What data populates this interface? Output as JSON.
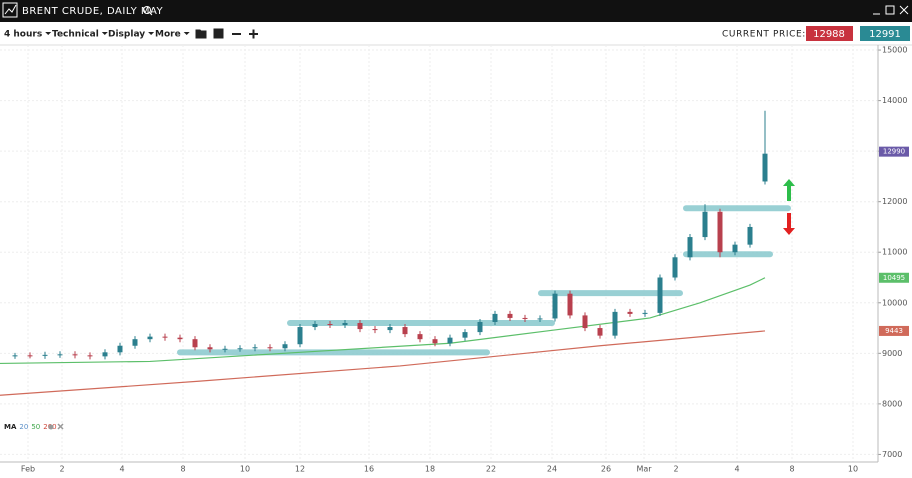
{
  "header": {
    "title": "BRENT CRUDE, DAILY MAY"
  },
  "toolbar": {
    "items": [
      "4 hours",
      "Technical",
      "Display",
      "More"
    ],
    "price_label": "CURRENT PRICE:",
    "bid": "12988",
    "ask": "12991"
  },
  "chart_data": {
    "type": "candlestick",
    "xlim": [
      0,
      175.6
    ],
    "ylim": [
      6850,
      15100
    ],
    "xticks": [
      {
        "value": 5.6,
        "label": "Feb"
      },
      {
        "value": 12.4,
        "label": "2"
      },
      {
        "value": 24.4,
        "label": "4"
      },
      {
        "value": 36.6,
        "label": "8"
      },
      {
        "value": 49,
        "label": "10"
      },
      {
        "value": 60,
        "label": "12"
      },
      {
        "value": 73.8,
        "label": "16"
      },
      {
        "value": 86,
        "label": "18"
      },
      {
        "value": 98.2,
        "label": "22"
      },
      {
        "value": 110.4,
        "label": "24"
      },
      {
        "value": 121.2,
        "label": "26"
      },
      {
        "value": 128.8,
        "label": "Mar"
      },
      {
        "value": 135.2,
        "label": "2"
      },
      {
        "value": 147.4,
        "label": "4"
      },
      {
        "value": 158.4,
        "label": "8"
      },
      {
        "value": 170.6,
        "label": "10"
      }
    ],
    "yticks": [
      7000,
      8000,
      9000,
      10000,
      11000,
      12000,
      13000,
      14000,
      15000
    ],
    "grid": true,
    "up_color": "#2b7f8e",
    "down_color": "#b8404e",
    "x": [
      3,
      6,
      9,
      12,
      15,
      18,
      21,
      24,
      27,
      30,
      33,
      36,
      39,
      42,
      45,
      48,
      51,
      54,
      57,
      60,
      63,
      66,
      69,
      72,
      75,
      78,
      81,
      84,
      87,
      90,
      93,
      96,
      99,
      102,
      105,
      108,
      111,
      114,
      117,
      120,
      123,
      126,
      129,
      132,
      135,
      138,
      141,
      144,
      147,
      150,
      153
    ],
    "open": [
      8950,
      8960,
      8950,
      8970,
      8980,
      8960,
      8940,
      9020,
      9150,
      9280,
      9330,
      9310,
      9280,
      9120,
      9080,
      9090,
      9100,
      9120,
      9100,
      9180,
      9520,
      9580,
      9560,
      9600,
      9480,
      9460,
      9520,
      9380,
      9280,
      9200,
      9310,
      9420,
      9620,
      9780,
      9700,
      9680,
      9690,
      10180,
      9750,
      9500,
      9350,
      9820,
      9780,
      9800,
      10500,
      10900,
      11300,
      11800,
      11000,
      11150,
      12400
    ],
    "high": [
      9010,
      9020,
      9030,
      9040,
      9040,
      9020,
      9080,
      9210,
      9340,
      9390,
      9390,
      9370,
      9340,
      9180,
      9150,
      9160,
      9180,
      9180,
      9240,
      9580,
      9640,
      9640,
      9660,
      9660,
      9540,
      9580,
      9580,
      9440,
      9340,
      9370,
      9480,
      9680,
      9840,
      9840,
      9760,
      9750,
      10240,
      10240,
      9810,
      9560,
      9880,
      9880,
      9860,
      10560,
      10960,
      11360,
      11950,
      11860,
      11210,
      11560,
      13800
    ],
    "low": [
      8890,
      8900,
      8890,
      8910,
      8900,
      8880,
      8880,
      8960,
      9090,
      9220,
      9250,
      9220,
      9060,
      9020,
      9020,
      9030,
      9040,
      9040,
      9040,
      9120,
      9460,
      9500,
      9500,
      9420,
      9400,
      9400,
      9320,
      9220,
      9140,
      9140,
      9250,
      9360,
      9560,
      9640,
      9620,
      9620,
      9630,
      9690,
      9440,
      9290,
      9290,
      9720,
      9720,
      9740,
      10440,
      10840,
      11240,
      10900,
      10940,
      11090,
      12340
    ],
    "close": [
      8960,
      8950,
      8970,
      8980,
      8960,
      8940,
      9020,
      9150,
      9280,
      9330,
      9310,
      9280,
      9120,
      9080,
      9090,
      9100,
      9120,
      9100,
      9180,
      9520,
      9580,
      9560,
      9600,
      9480,
      9460,
      9520,
      9380,
      9280,
      9200,
      9310,
      9420,
      9620,
      9780,
      9700,
      9680,
      9690,
      10180,
      9750,
      9500,
      9350,
      9820,
      9780,
      9800,
      10500,
      10900,
      11300,
      11800,
      11000,
      11150,
      11500,
      12950
    ],
    "last_price": 12990,
    "last_color": "#6a5aa8",
    "indicator": {
      "label": "MA",
      "periods": [
        "20",
        "50",
        "200"
      ],
      "colors": [
        "#5b8fc7",
        "#3fa64a",
        "#d0453a"
      ]
    },
    "series": [
      {
        "color": "#5cbf6a",
        "x": [
          0,
          30,
          60,
          90,
          110,
          130,
          140,
          150,
          153
        ],
        "values": [
          8800,
          8840,
          9020,
          9200,
          9450,
          9700,
          10000,
          10350,
          10495
        ],
        "end_value": 10495
      },
      {
        "color": "#d06a5a",
        "x": [
          0,
          40,
          80,
          120,
          153
        ],
        "values": [
          8170,
          8450,
          8750,
          9150,
          9443
        ],
        "end_value": 9443
      }
    ],
    "levels": [
      {
        "value": 9020,
        "x": [
          36,
          97.4
        ]
      },
      {
        "value": 9600,
        "x": [
          58,
          110.4
        ]
      },
      {
        "value": 10190,
        "x": [
          108.2,
          136
        ]
      },
      {
        "value": 10960,
        "x": [
          137.2,
          154
        ]
      },
      {
        "value": 11870,
        "x": [
          137.2,
          157.6
        ]
      }
    ]
  }
}
